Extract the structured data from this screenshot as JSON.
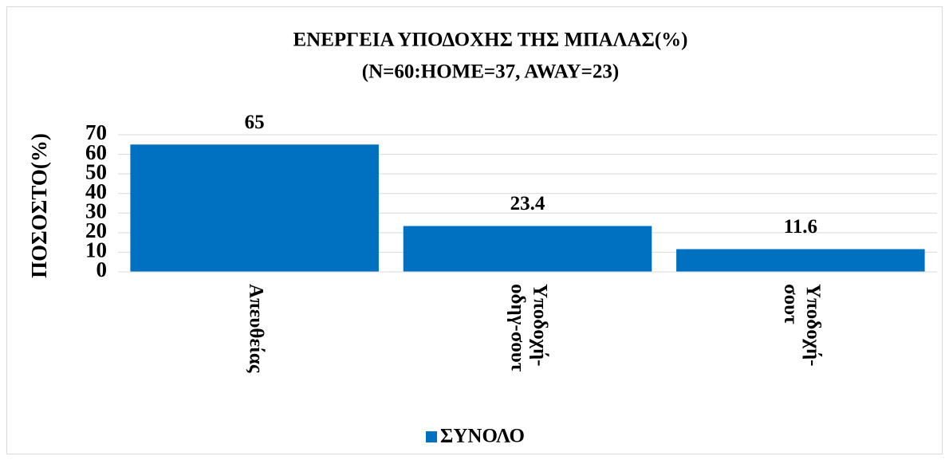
{
  "chart_data": {
    "type": "bar",
    "title": "ΕΝΕΡΓΕΙΑ ΥΠΟΔΟΧΗΣ ΤΗΣ ΜΠΑΛΑΣ(%)",
    "subtitle": "(N=60:HOME=37, AWAY=23)",
    "y_label": "ΠΟΣΟΣΤΟ(%)",
    "categories": [
      "Απευθείας",
      "Υποδοχή-οδηγ-σουτ",
      "Υποδοχή-σουτ"
    ],
    "series": [
      {
        "name": "ΣΥΝΟΛΟ",
        "color": "#0070c0",
        "values": [
          65,
          23.4,
          11.6
        ]
      }
    ],
    "ylim": [
      0,
      70
    ],
    "yticks": [
      0,
      10,
      20,
      30,
      40,
      50,
      60,
      70
    ],
    "grid": true,
    "legend": "bottom"
  }
}
